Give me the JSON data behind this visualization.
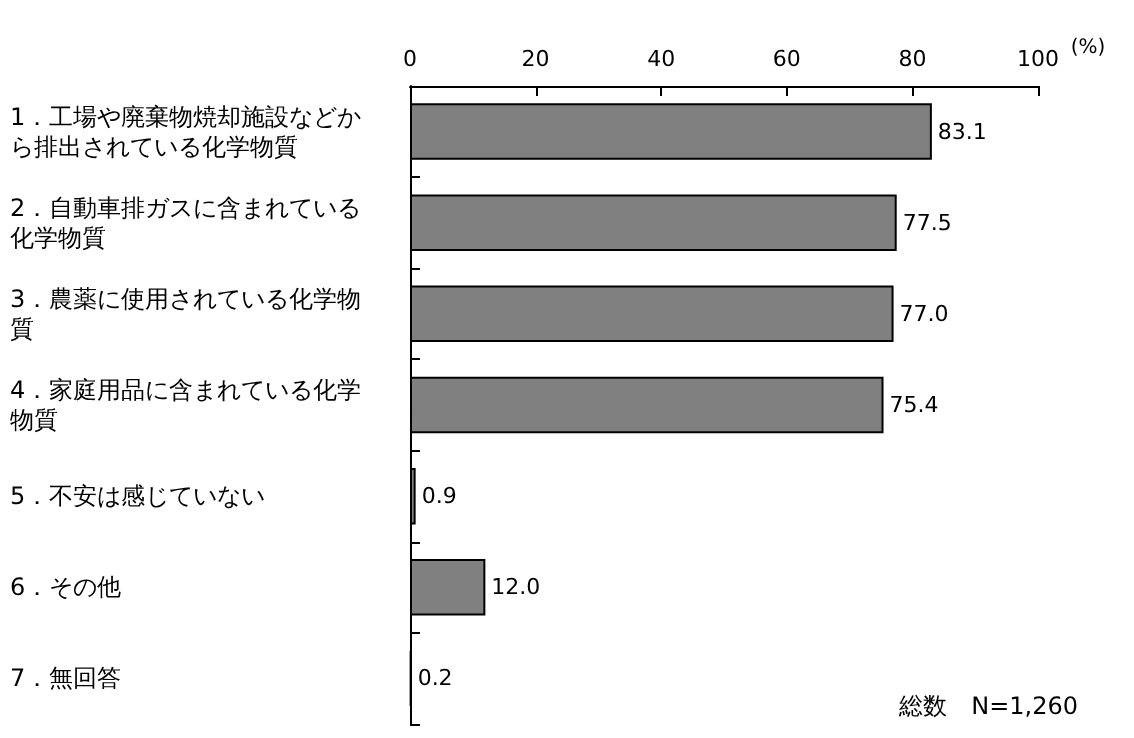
{
  "chart_data": {
    "type": "bar",
    "orientation": "horizontal",
    "categories": [
      "1．工場や廃棄物焼却施設などから排出されている化学物質",
      "2．自動車排ガスに含まれている化学物質",
      "3．農薬に使用されている化学物質",
      "4．家庭用品に含まれている化学物質",
      "5．不安は感じていない",
      "6．その他",
      "7．無回答"
    ],
    "values": [
      83.1,
      77.5,
      77.0,
      75.4,
      0.9,
      12.0,
      0.2
    ],
    "value_labels": [
      "83.1",
      "77.5",
      "77.0",
      "75.4",
      "0.9",
      "12.0",
      "0.2"
    ],
    "color": "#808080",
    "xlim": [
      0,
      100
    ],
    "xticks": [
      0,
      20,
      40,
      60,
      80,
      100
    ],
    "xlabel": "(%)",
    "annotations": [
      "総数　N=1,260"
    ],
    "grid": false
  }
}
